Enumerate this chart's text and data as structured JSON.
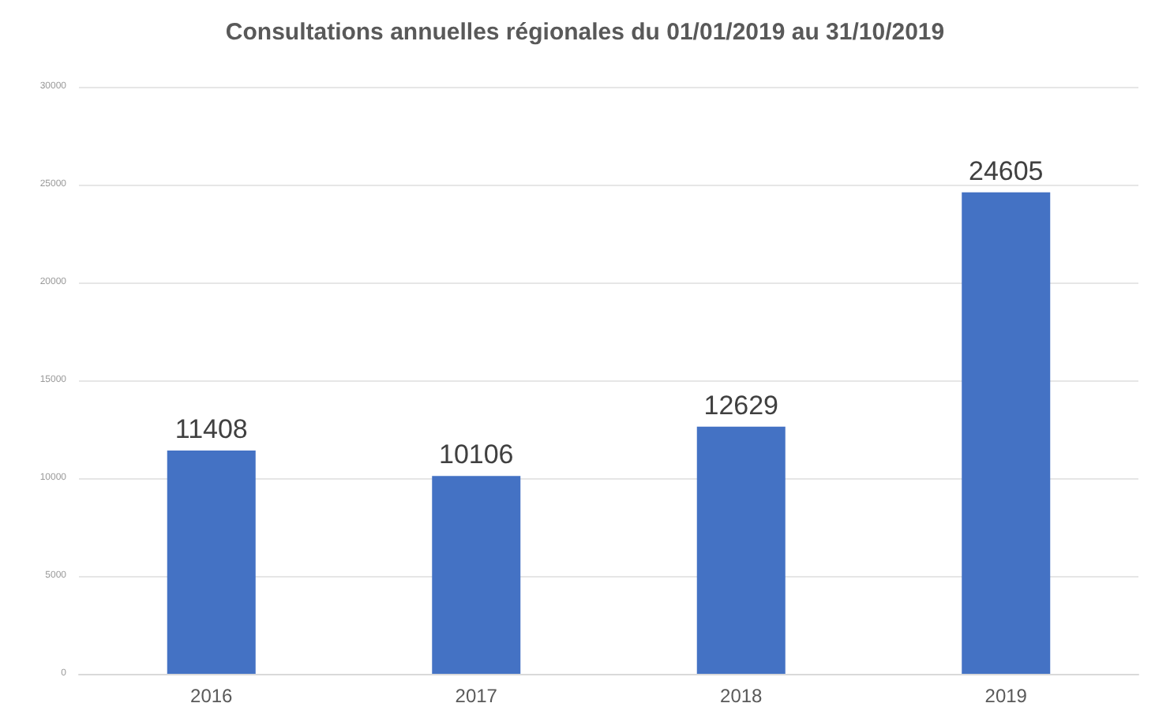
{
  "chart_data": {
    "type": "bar",
    "title": "Consultations annuelles régionales du 01/01/2019 au 31/10/2019",
    "categories": [
      "2016",
      "2017",
      "2018",
      "2019"
    ],
    "values": [
      11408,
      10106,
      12629,
      24605
    ],
    "color": "#4472c4",
    "ylim": [
      0,
      30000
    ],
    "yticks": [
      0,
      5000,
      10000,
      15000,
      20000,
      25000,
      30000
    ],
    "grid": "y",
    "data_labels": true
  }
}
